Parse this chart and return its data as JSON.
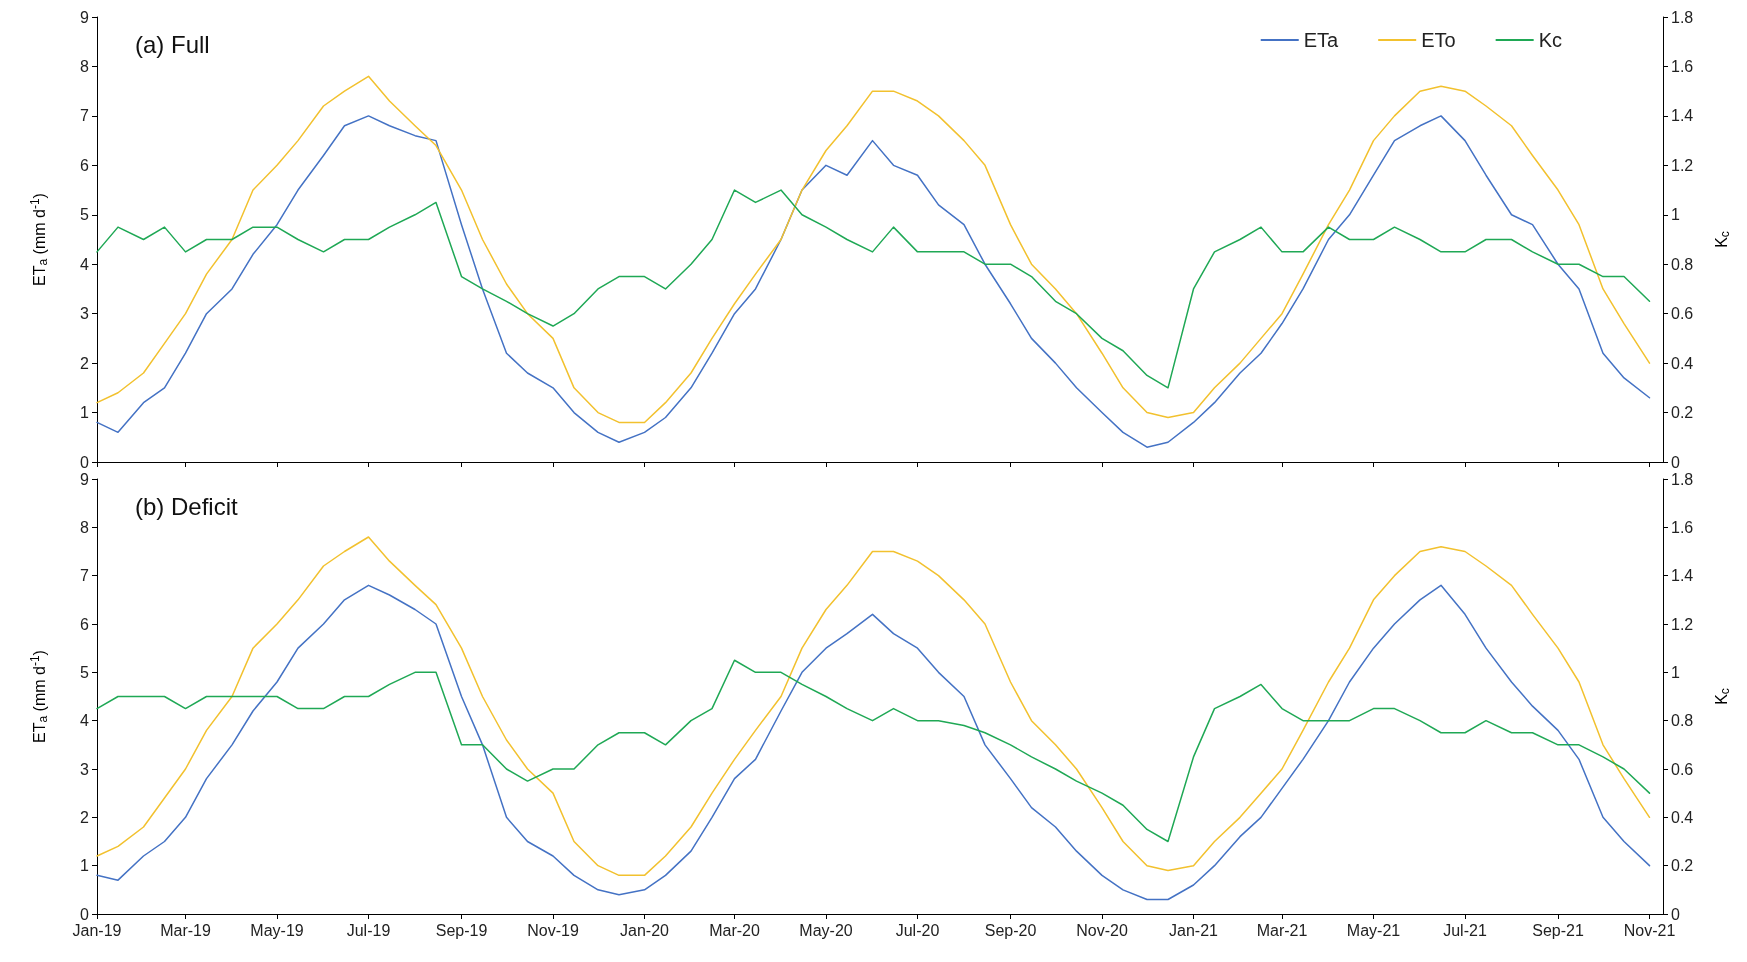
{
  "chart_data": [
    {
      "type": "line",
      "title": "(a) Full",
      "ylabel": "ET$_{a}$ (mm d$^{-1}$)",
      "y2label": "K$_{c}$",
      "x": [
        "2019-01-01",
        "2019-01-15",
        "2019-02-01",
        "2019-02-15",
        "2019-03-01",
        "2019-03-15",
        "2019-04-01",
        "2019-04-15",
        "2019-05-01",
        "2019-05-15",
        "2019-06-01",
        "2019-06-15",
        "2019-07-01",
        "2019-07-15",
        "2019-08-01",
        "2019-08-15",
        "2019-09-01",
        "2019-09-15",
        "2019-10-01",
        "2019-10-15",
        "2019-11-01",
        "2019-11-15",
        "2019-12-01",
        "2019-12-15",
        "2020-01-01",
        "2020-01-15",
        "2020-02-01",
        "2020-02-15",
        "2020-03-01",
        "2020-03-15",
        "2020-04-01",
        "2020-04-15",
        "2020-05-01",
        "2020-05-15",
        "2020-06-01",
        "2020-06-15",
        "2020-07-01",
        "2020-07-15",
        "2020-08-01",
        "2020-08-15",
        "2020-09-01",
        "2020-09-15",
        "2020-10-01",
        "2020-10-15",
        "2020-11-01",
        "2020-11-15",
        "2020-12-01",
        "2020-12-15",
        "2021-01-01",
        "2021-01-15",
        "2021-02-01",
        "2021-02-15",
        "2021-03-01",
        "2021-03-15",
        "2021-04-01",
        "2021-04-15",
        "2021-05-01",
        "2021-05-15",
        "2021-06-01",
        "2021-06-15",
        "2021-07-01",
        "2021-07-15",
        "2021-08-01",
        "2021-08-15",
        "2021-09-01",
        "2021-09-15",
        "2021-10-01",
        "2021-10-15",
        "2021-11-01"
      ],
      "series": [
        {
          "name": "ETa",
          "color": "#4472c4",
          "values": [
            0.8,
            0.6,
            1.2,
            1.5,
            2.2,
            3.0,
            3.5,
            4.2,
            4.8,
            5.5,
            6.2,
            6.8,
            7.0,
            6.8,
            6.6,
            6.5,
            4.8,
            3.5,
            2.2,
            1.8,
            1.5,
            1.0,
            0.6,
            0.4,
            0.6,
            0.9,
            1.5,
            2.2,
            3.0,
            3.5,
            4.5,
            5.5,
            6.0,
            5.8,
            6.5,
            6.0,
            5.8,
            5.2,
            4.8,
            4.0,
            3.2,
            2.5,
            2.0,
            1.5,
            1.0,
            0.6,
            0.3,
            0.4,
            0.8,
            1.2,
            1.8,
            2.2,
            2.8,
            3.5,
            4.5,
            5.0,
            5.8,
            6.5,
            6.8,
            7.0,
            6.5,
            5.8,
            5.0,
            4.8,
            4.0,
            3.5,
            2.2,
            1.7,
            1.3
          ]
        },
        {
          "name": "ETo",
          "color": "#f2c12e",
          "values": [
            1.2,
            1.4,
            1.8,
            2.4,
            3.0,
            3.8,
            4.5,
            5.5,
            6.0,
            6.5,
            7.2,
            7.5,
            7.8,
            7.3,
            6.8,
            6.4,
            5.5,
            4.5,
            3.6,
            3.0,
            2.5,
            1.5,
            1.0,
            0.8,
            0.8,
            1.2,
            1.8,
            2.5,
            3.2,
            3.8,
            4.5,
            5.5,
            6.3,
            6.8,
            7.5,
            7.5,
            7.3,
            7.0,
            6.5,
            6.0,
            4.8,
            4.0,
            3.5,
            3.0,
            2.2,
            1.5,
            1.0,
            0.9,
            1.0,
            1.5,
            2.0,
            2.5,
            3.0,
            3.8,
            4.8,
            5.5,
            6.5,
            7.0,
            7.5,
            7.6,
            7.5,
            7.2,
            6.8,
            6.2,
            5.5,
            4.8,
            3.5,
            2.8,
            2.0
          ]
        },
        {
          "name": "Kc",
          "color": "#1fa855",
          "axis": "y2",
          "values": [
            0.85,
            0.95,
            0.9,
            0.95,
            0.85,
            0.9,
            0.9,
            0.95,
            0.95,
            0.9,
            0.85,
            0.9,
            0.9,
            0.95,
            1.0,
            1.05,
            0.75,
            0.7,
            0.65,
            0.6,
            0.55,
            0.6,
            0.7,
            0.75,
            0.75,
            0.7,
            0.8,
            0.9,
            1.1,
            1.05,
            1.1,
            1.0,
            0.95,
            0.9,
            0.85,
            0.95,
            0.85,
            0.85,
            0.85,
            0.8,
            0.8,
            0.75,
            0.65,
            0.6,
            0.5,
            0.45,
            0.35,
            0.3,
            0.7,
            0.85,
            0.9,
            0.95,
            0.85,
            0.85,
            0.95,
            0.9,
            0.9,
            0.95,
            0.9,
            0.85,
            0.85,
            0.9,
            0.9,
            0.85,
            0.8,
            0.8,
            0.75,
            0.75,
            0.65
          ]
        }
      ],
      "xlim": [
        "2019-01-01",
        "2021-11-10"
      ],
      "xticks": [
        {
          "value": "2019-01-01",
          "label": null
        },
        {
          "value": "2019-03-01",
          "label": null
        },
        {
          "value": "2019-05-01",
          "label": null
        },
        {
          "value": "2019-07-01",
          "label": null
        },
        {
          "value": "2019-09-01",
          "label": null
        },
        {
          "value": "2019-11-01",
          "label": null
        },
        {
          "value": "2020-01-01",
          "label": null
        },
        {
          "value": "2020-03-01",
          "label": null
        },
        {
          "value": "2020-05-01",
          "label": null
        },
        {
          "value": "2020-07-01",
          "label": null
        },
        {
          "value": "2020-09-01",
          "label": null
        },
        {
          "value": "2020-11-01",
          "label": null
        },
        {
          "value": "2021-01-01",
          "label": null
        },
        {
          "value": "2021-03-01",
          "label": null
        },
        {
          "value": "2021-05-01",
          "label": null
        },
        {
          "value": "2021-07-01",
          "label": null
        },
        {
          "value": "2021-09-01",
          "label": null
        },
        {
          "value": "2021-11-01",
          "label": null
        }
      ],
      "ylim": [
        0,
        9
      ],
      "yticks": [
        0,
        1,
        2,
        3,
        4,
        5,
        6,
        7,
        8,
        9
      ],
      "y2lim": [
        0,
        1.8
      ],
      "y2ticks": [
        0,
        0.2,
        0.4,
        0.6,
        0.8,
        1,
        1.2,
        1.4,
        1.6,
        1.8
      ],
      "tick_labels": "y",
      "grid": false,
      "legend": "top right",
      "marker": "none",
      "line_style": "solid"
    },
    {
      "type": "line",
      "title": "(b) Deficit",
      "ylabel": "ET$_{a}$ (mm d$^{-1}$)",
      "y2label": "K$_{c}$",
      "x": [
        "2019-01-01",
        "2019-01-15",
        "2019-02-01",
        "2019-02-15",
        "2019-03-01",
        "2019-03-15",
        "2019-04-01",
        "2019-04-15",
        "2019-05-01",
        "2019-05-15",
        "2019-06-01",
        "2019-06-15",
        "2019-07-01",
        "2019-07-15",
        "2019-08-01",
        "2019-08-15",
        "2019-09-01",
        "2019-09-15",
        "2019-10-01",
        "2019-10-15",
        "2019-11-01",
        "2019-11-15",
        "2019-12-01",
        "2019-12-15",
        "2020-01-01",
        "2020-01-15",
        "2020-02-01",
        "2020-02-15",
        "2020-03-01",
        "2020-03-15",
        "2020-04-01",
        "2020-04-15",
        "2020-05-01",
        "2020-05-15",
        "2020-06-01",
        "2020-06-15",
        "2020-07-01",
        "2020-07-15",
        "2020-08-01",
        "2020-08-15",
        "2020-09-01",
        "2020-09-15",
        "2020-10-01",
        "2020-10-15",
        "2020-11-01",
        "2020-11-15",
        "2020-12-01",
        "2020-12-15",
        "2021-01-01",
        "2021-01-15",
        "2021-02-01",
        "2021-02-15",
        "2021-03-01",
        "2021-03-15",
        "2021-04-01",
        "2021-04-15",
        "2021-05-01",
        "2021-05-15",
        "2021-06-01",
        "2021-06-15",
        "2021-07-01",
        "2021-07-15",
        "2021-08-01",
        "2021-08-15",
        "2021-09-01",
        "2021-09-15",
        "2021-10-01",
        "2021-10-15",
        "2021-11-01"
      ],
      "series": [
        {
          "color": "#4472c4",
          "values": [
            0.8,
            0.7,
            1.2,
            1.5,
            2.0,
            2.8,
            3.5,
            4.2,
            4.8,
            5.5,
            6.0,
            6.5,
            6.8,
            6.6,
            6.3,
            6.0,
            4.5,
            3.5,
            2.0,
            1.5,
            1.2,
            0.8,
            0.5,
            0.4,
            0.5,
            0.8,
            1.3,
            2.0,
            2.8,
            3.2,
            4.2,
            5.0,
            5.5,
            5.8,
            6.2,
            5.8,
            5.5,
            5.0,
            4.5,
            3.5,
            2.8,
            2.2,
            1.8,
            1.3,
            0.8,
            0.5,
            0.3,
            0.3,
            0.6,
            1.0,
            1.6,
            2.0,
            2.6,
            3.2,
            4.0,
            4.8,
            5.5,
            6.0,
            6.5,
            6.8,
            6.2,
            5.5,
            4.8,
            4.3,
            3.8,
            3.2,
            2.0,
            1.5,
            1.0
          ]
        },
        {
          "color": "#f2c12e",
          "values": [
            1.2,
            1.4,
            1.8,
            2.4,
            3.0,
            3.8,
            4.5,
            5.5,
            6.0,
            6.5,
            7.2,
            7.5,
            7.8,
            7.3,
            6.8,
            6.4,
            5.5,
            4.5,
            3.6,
            3.0,
            2.5,
            1.5,
            1.0,
            0.8,
            0.8,
            1.2,
            1.8,
            2.5,
            3.2,
            3.8,
            4.5,
            5.5,
            6.3,
            6.8,
            7.5,
            7.5,
            7.3,
            7.0,
            6.5,
            6.0,
            4.8,
            4.0,
            3.5,
            3.0,
            2.2,
            1.5,
            1.0,
            0.9,
            1.0,
            1.5,
            2.0,
            2.5,
            3.0,
            3.8,
            4.8,
            5.5,
            6.5,
            7.0,
            7.5,
            7.6,
            7.5,
            7.2,
            6.8,
            6.2,
            5.5,
            4.8,
            3.5,
            2.8,
            2.0
          ]
        },
        {
          "color": "#1fa855",
          "axis": "y2",
          "values": [
            0.85,
            0.9,
            0.9,
            0.9,
            0.85,
            0.9,
            0.9,
            0.9,
            0.9,
            0.85,
            0.85,
            0.9,
            0.9,
            0.95,
            1.0,
            1.0,
            0.7,
            0.7,
            0.6,
            0.55,
            0.6,
            0.6,
            0.7,
            0.75,
            0.75,
            0.7,
            0.8,
            0.85,
            1.05,
            1.0,
            1.0,
            0.95,
            0.9,
            0.85,
            0.8,
            0.85,
            0.8,
            0.8,
            0.78,
            0.75,
            0.7,
            0.65,
            0.6,
            0.55,
            0.5,
            0.45,
            0.35,
            0.3,
            0.65,
            0.85,
            0.9,
            0.95,
            0.85,
            0.8,
            0.8,
            0.8,
            0.85,
            0.85,
            0.8,
            0.75,
            0.75,
            0.8,
            0.75,
            0.75,
            0.7,
            0.7,
            0.65,
            0.6,
            0.5
          ]
        }
      ],
      "xlim": [
        "2019-01-01",
        "2021-11-10"
      ],
      "xticks": [
        {
          "value": "2019-01-01",
          "label": "Jan-19"
        },
        {
          "value": "2019-03-01",
          "label": "Mar-19"
        },
        {
          "value": "2019-05-01",
          "label": "May-19"
        },
        {
          "value": "2019-07-01",
          "label": "Jul-19"
        },
        {
          "value": "2019-09-01",
          "label": "Sep-19"
        },
        {
          "value": "2019-11-01",
          "label": "Nov-19"
        },
        {
          "value": "2020-01-01",
          "label": "Jan-20"
        },
        {
          "value": "2020-03-01",
          "label": "Mar-20"
        },
        {
          "value": "2020-05-01",
          "label": "May-20"
        },
        {
          "value": "2020-07-01",
          "label": "Jul-20"
        },
        {
          "value": "2020-09-01",
          "label": "Sep-20"
        },
        {
          "value": "2020-11-01",
          "label": "Nov-20"
        },
        {
          "value": "2021-01-01",
          "label": "Jan-21"
        },
        {
          "value": "2021-03-01",
          "label": "Mar-21"
        },
        {
          "value": "2021-05-01",
          "label": "May-21"
        },
        {
          "value": "2021-07-01",
          "label": "Jul-21"
        },
        {
          "value": "2021-09-01",
          "label": "Sep-21"
        },
        {
          "value": "2021-11-01",
          "label": "Nov-21"
        }
      ],
      "ylim": [
        0,
        9
      ],
      "yticks": [
        0,
        1,
        2,
        3,
        4,
        5,
        6,
        7,
        8,
        9
      ],
      "y2lim": [
        0,
        1.8
      ],
      "y2ticks": [
        0,
        0.2,
        0.4,
        0.6,
        0.8,
        1,
        1.2,
        1.4,
        1.6,
        1.8
      ],
      "grid": false,
      "marker": "none",
      "line_style": "solid"
    }
  ]
}
